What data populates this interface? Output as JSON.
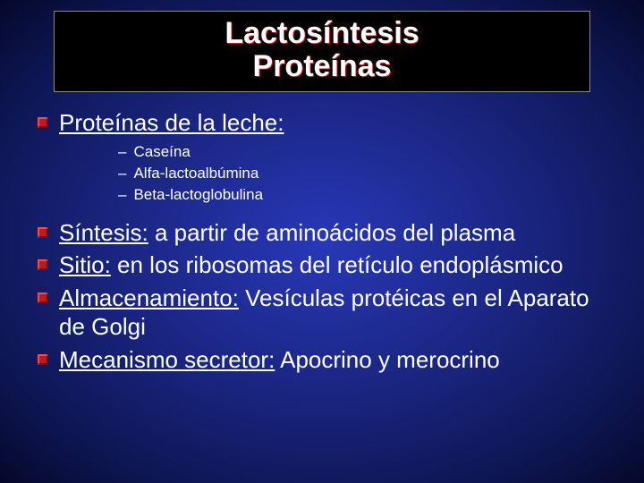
{
  "colors": {
    "bg_center": "#2838b8",
    "bg_mid": "#1a2580",
    "bg_outer": "#05082a",
    "title_box_bg": "#000000",
    "title_text": "#ffffff",
    "title_shadow": "#c01820",
    "bullet_square": "#c01820",
    "body_text": "#ffffff"
  },
  "typography": {
    "title_fontsize": 34,
    "level1_fontsize": 26,
    "sub_fontsize": 17,
    "font_family": "Arial"
  },
  "title": {
    "line1": "Lactosíntesis",
    "line2": "Proteínas"
  },
  "bullets": [
    {
      "label": "Proteínas de la leche:",
      "rest": "",
      "sub": [
        "Caseína",
        "Alfa-lactoalbúmina",
        "Beta-lactoglobulina"
      ]
    },
    {
      "label": "Síntesis:",
      "rest": " a partir de aminoácidos del plasma"
    },
    {
      "label": "Sitio:",
      "rest": " en los ribosomas del retículo endoplásmico"
    },
    {
      "label": "Almacenamiento:",
      "rest": " Vesículas protéicas en el Aparato de Golgi"
    },
    {
      "label": "Mecanismo secretor:",
      "rest": " Apocrino y merocrino"
    }
  ]
}
